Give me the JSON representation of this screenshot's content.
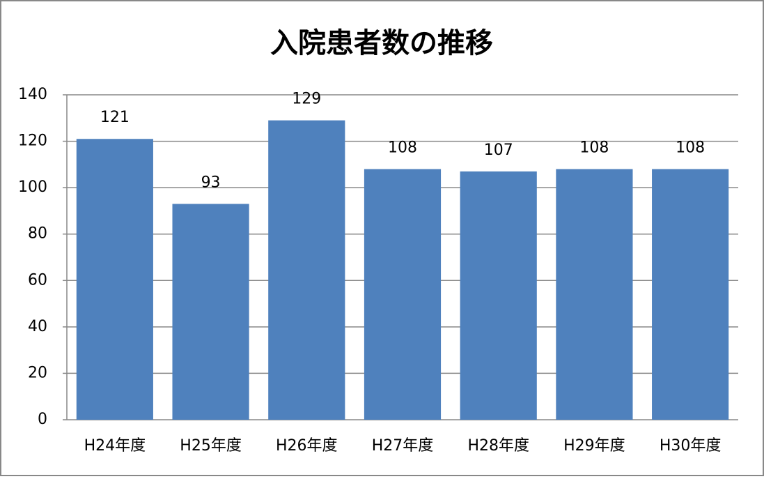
{
  "chart_data": {
    "type": "bar",
    "title": "入院患者数の推移",
    "categories": [
      "H24年度",
      "H25年度",
      "H26年度",
      "H27年度",
      "H28年度",
      "H29年度",
      "H30年度"
    ],
    "values": [
      121,
      93,
      129,
      108,
      107,
      108,
      108
    ],
    "color": "#4f81bd",
    "ylim": [
      0,
      140
    ],
    "yticks": [
      0,
      20,
      40,
      60,
      80,
      100,
      120,
      140
    ],
    "grid": true
  }
}
